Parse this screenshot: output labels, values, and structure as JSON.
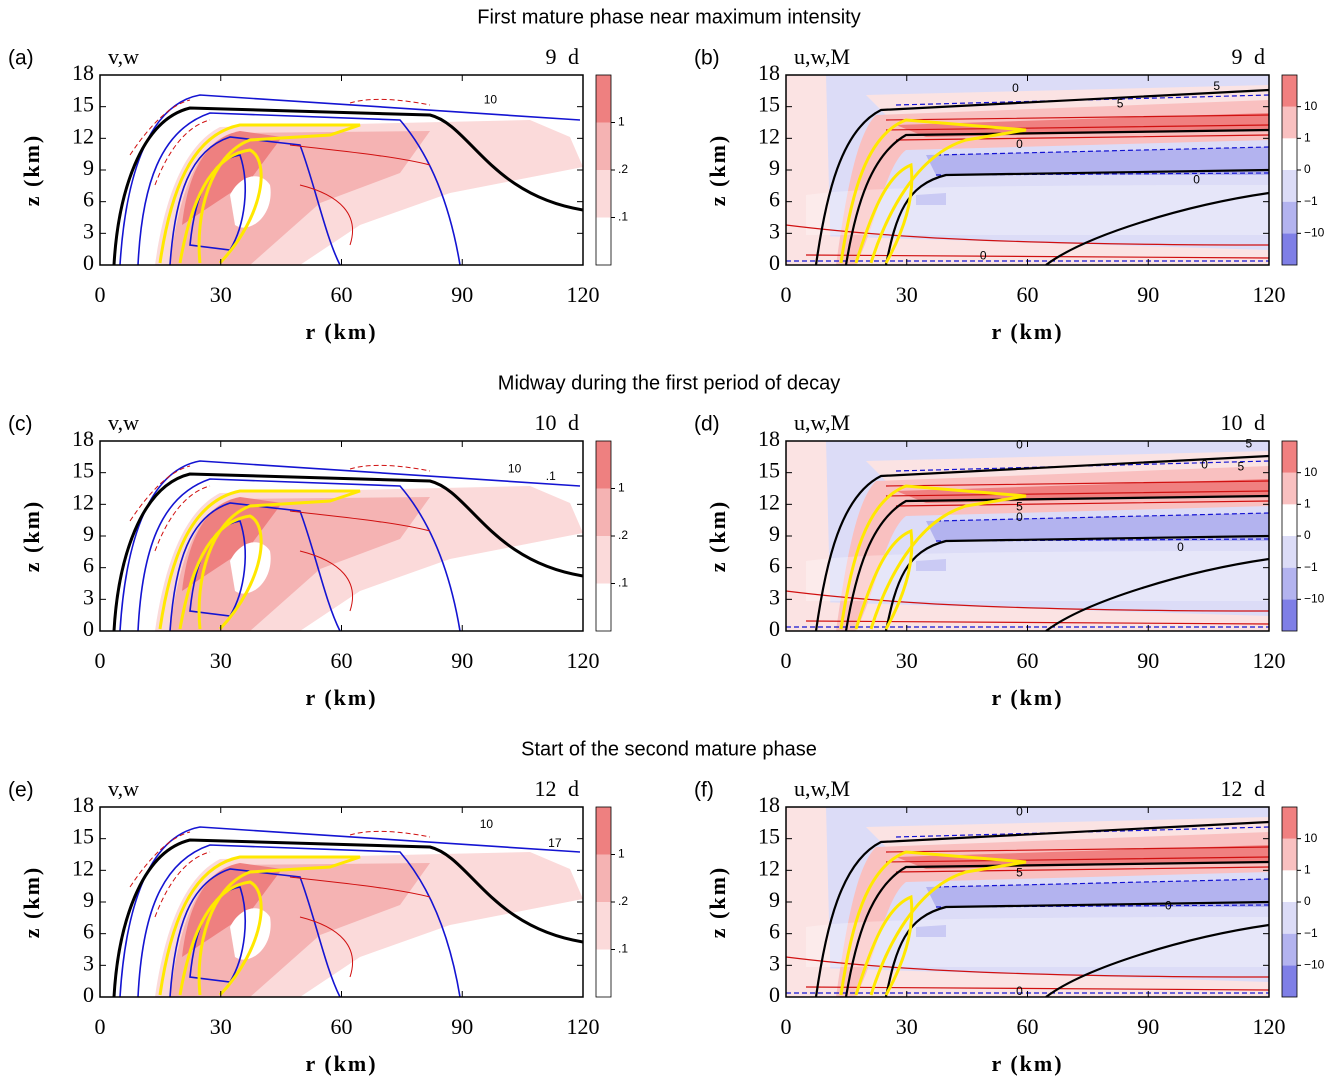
{
  "row_titles": [
    "First mature phase near maximum intensity",
    "Midway during the first period of decay",
    "Start of the second mature phase"
  ],
  "chart_data": [
    {
      "type": "contour",
      "panel": "(a)",
      "fields": "v,w",
      "time": "9 d",
      "xlabel": "r (km)",
      "ylabel": "z (km)",
      "xlim": [
        0,
        120
      ],
      "ylim": [
        0,
        18
      ],
      "xticks": [
        0,
        30,
        60,
        90,
        120
      ],
      "yticks": [
        0,
        3,
        6,
        9,
        12,
        15,
        18
      ],
      "colorbar": {
        "colors": [
          "#ffffff",
          "#fbdada",
          "#f5b3b3",
          "#ee8080"
        ],
        "ticks": [
          {
            "value": 0.1,
            "label": ".1"
          },
          {
            "value": 0.2,
            "label": ".2"
          },
          1
        ]
      },
      "annotations": [
        {
          "text": "10",
          "x": 97,
          "y": 15.6
        }
      ]
    },
    {
      "type": "contour",
      "panel": "(b)",
      "fields": "u,w,M",
      "time": "9 d",
      "xlabel": "r (km)",
      "ylabel": "z (km)",
      "xlim": [
        0,
        120
      ],
      "ylim": [
        0,
        18
      ],
      "xticks": [
        0,
        30,
        60,
        90,
        120
      ],
      "yticks": [
        0,
        3,
        6,
        9,
        12,
        15,
        18
      ],
      "colorbar": {
        "colors": [
          "#7f7fe6",
          "#b3b3ef",
          "#dcdcf7",
          "#ffffff",
          "#f9c0c0",
          "#f08080"
        ],
        "ticks": [
          {
            "value": -10,
            "label": "−10"
          },
          {
            "value": -1,
            "label": "−1"
          },
          0,
          1,
          10
        ]
      },
      "annotations": [
        {
          "text": "0",
          "x": 57,
          "y": 16.7
        },
        {
          "text": "5",
          "x": 107,
          "y": 16.9
        },
        {
          "text": "5",
          "x": 83,
          "y": 15.2
        },
        {
          "text": "0",
          "x": 58,
          "y": 11.4
        },
        {
          "text": "0",
          "x": 102,
          "y": 8
        },
        {
          "text": "0",
          "x": 49,
          "y": 0.8
        }
      ]
    },
    {
      "type": "contour",
      "panel": "(c)",
      "fields": "v,w",
      "time": "10 d",
      "xlabel": "r (km)",
      "ylabel": "z (km)",
      "xlim": [
        0,
        120
      ],
      "ylim": [
        0,
        18
      ],
      "xticks": [
        0,
        30,
        60,
        90,
        120
      ],
      "yticks": [
        0,
        3,
        6,
        9,
        12,
        15,
        18
      ],
      "colorbar": {
        "colors": [
          "#ffffff",
          "#fbdada",
          "#f5b3b3",
          "#ee8080"
        ],
        "ticks": [
          {
            "value": 0.1,
            "label": ".1"
          },
          {
            "value": 0.2,
            "label": ".2"
          },
          1
        ]
      },
      "annotations": [
        {
          "text": "10",
          "x": 103,
          "y": 15.3
        },
        {
          "text": ".1",
          "x": 112,
          "y": 14.6
        }
      ]
    },
    {
      "type": "contour",
      "panel": "(d)",
      "fields": "u,w,M",
      "time": "10 d",
      "xlabel": "r (km)",
      "ylabel": "z (km)",
      "xlim": [
        0,
        120
      ],
      "ylim": [
        0,
        18
      ],
      "xticks": [
        0,
        30,
        60,
        90,
        120
      ],
      "yticks": [
        0,
        3,
        6,
        9,
        12,
        15,
        18
      ],
      "colorbar": {
        "colors": [
          "#7f7fe6",
          "#b3b3ef",
          "#dcdcf7",
          "#ffffff",
          "#f9c0c0",
          "#f08080"
        ],
        "ticks": [
          {
            "value": -10,
            "label": "−10"
          },
          {
            "value": -1,
            "label": "−1"
          },
          0,
          1,
          10
        ]
      },
      "annotations": [
        {
          "text": "0",
          "x": 58,
          "y": 17.6
        },
        {
          "text": "5",
          "x": 115,
          "y": 17.7
        },
        {
          "text": "0",
          "x": 104,
          "y": 15.7
        },
        {
          "text": "5",
          "x": 113,
          "y": 15.5
        },
        {
          "text": "5",
          "x": 58,
          "y": 11.7
        },
        {
          "text": "0",
          "x": 58,
          "y": 10.7
        },
        {
          "text": "0",
          "x": 98,
          "y": 7.9
        }
      ]
    },
    {
      "type": "contour",
      "panel": "(e)",
      "fields": "v,w",
      "time": "12 d",
      "xlabel": "r (km)",
      "ylabel": "z (km)",
      "xlim": [
        0,
        120
      ],
      "ylim": [
        0,
        18
      ],
      "xticks": [
        0,
        30,
        60,
        90,
        120
      ],
      "yticks": [
        0,
        3,
        6,
        9,
        12,
        15,
        18
      ],
      "colorbar": {
        "colors": [
          "#ffffff",
          "#fbdada",
          "#f5b3b3",
          "#ee8080"
        ],
        "ticks": [
          {
            "value": 0.1,
            "label": ".1"
          },
          {
            "value": 0.2,
            "label": ".2"
          },
          1
        ]
      },
      "annotations": [
        {
          "text": "10",
          "x": 96,
          "y": 16.3
        },
        {
          "text": "17",
          "x": 113,
          "y": 14.5
        }
      ]
    },
    {
      "type": "contour",
      "panel": "(f)",
      "fields": "u,w,M",
      "time": "12 d",
      "xlabel": "r (km)",
      "ylabel": "z (km)",
      "xlim": [
        0,
        120
      ],
      "ylim": [
        0,
        18
      ],
      "xticks": [
        0,
        30,
        60,
        90,
        120
      ],
      "yticks": [
        0,
        3,
        6,
        9,
        12,
        15,
        18
      ],
      "colorbar": {
        "colors": [
          "#7f7fe6",
          "#b3b3ef",
          "#dcdcf7",
          "#ffffff",
          "#f9c0c0",
          "#f08080"
        ],
        "ticks": [
          {
            "value": -10,
            "label": "−10"
          },
          {
            "value": -1,
            "label": "−1"
          },
          0,
          1,
          10
        ]
      },
      "annotations": [
        {
          "text": "0",
          "x": 58,
          "y": 17.5
        },
        {
          "text": "5",
          "x": 58,
          "y": 11.7
        },
        {
          "text": "0",
          "x": 95,
          "y": 8.6
        },
        {
          "text": "0",
          "x": 58,
          "y": 0.5
        }
      ]
    }
  ]
}
